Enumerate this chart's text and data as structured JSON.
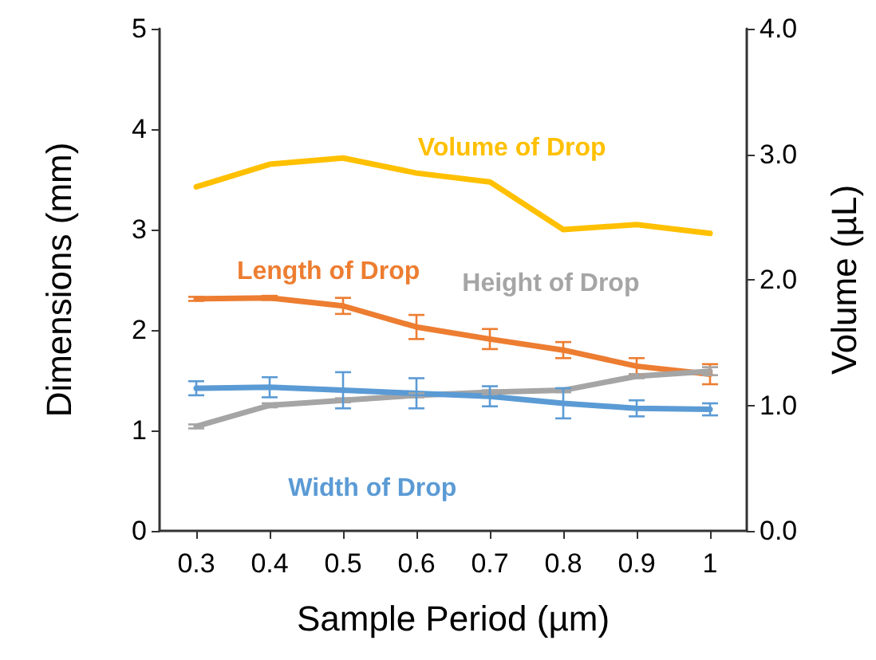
{
  "chart_data": {
    "type": "line",
    "xlabel": "Sample Period (µm)",
    "ylabel": "Dimensions (mm)",
    "y2label": "Volume (µL)",
    "categories": [
      "0.3",
      "0.4",
      "0.5",
      "0.6",
      "0.7",
      "0.8",
      "0.9",
      "1"
    ],
    "series": [
      {
        "name": "Volume of Drop",
        "color": "#ffc000",
        "axis": "y2",
        "values": [
          2.74,
          2.92,
          2.97,
          2.85,
          2.78,
          2.4,
          2.44,
          2.37
        ]
      },
      {
        "name": "Length of Drop",
        "color": "#ed7d31",
        "values": [
          2.31,
          2.32,
          2.24,
          2.03,
          1.91,
          1.8,
          1.64,
          1.56
        ],
        "errors": [
          0.02,
          0.02,
          0.08,
          0.12,
          0.1,
          0.08,
          0.08,
          0.1
        ]
      },
      {
        "name": "Height of Drop",
        "color": "#a5a5a5",
        "values": [
          1.04,
          1.25,
          1.3,
          1.35,
          1.38,
          1.4,
          1.54,
          1.59
        ],
        "errors": [
          0.02,
          0.02,
          0.02,
          0.02,
          0.02,
          0.02,
          0.02,
          0.04
        ]
      },
      {
        "name": "Width of Drop",
        "color": "#5b9bd5",
        "values": [
          1.42,
          1.43,
          1.4,
          1.37,
          1.34,
          1.27,
          1.22,
          1.21
        ],
        "errors": [
          0.07,
          0.1,
          0.18,
          0.15,
          0.1,
          0.15,
          0.08,
          0.06
        ]
      }
    ],
    "ylim": [
      0,
      5
    ],
    "yticks": [
      0,
      1,
      2,
      3,
      4,
      5
    ],
    "y2lim": [
      0,
      4
    ],
    "y2ticks": [
      {
        "value": 0,
        "label": "0.0"
      },
      {
        "value": 1,
        "label": "1.0"
      },
      {
        "value": 2,
        "label": "2.0"
      },
      {
        "value": 3,
        "label": "3.0"
      },
      {
        "value": 4,
        "label": "4.0"
      }
    ],
    "grid": false,
    "marker": "none",
    "line_style": "solid"
  }
}
